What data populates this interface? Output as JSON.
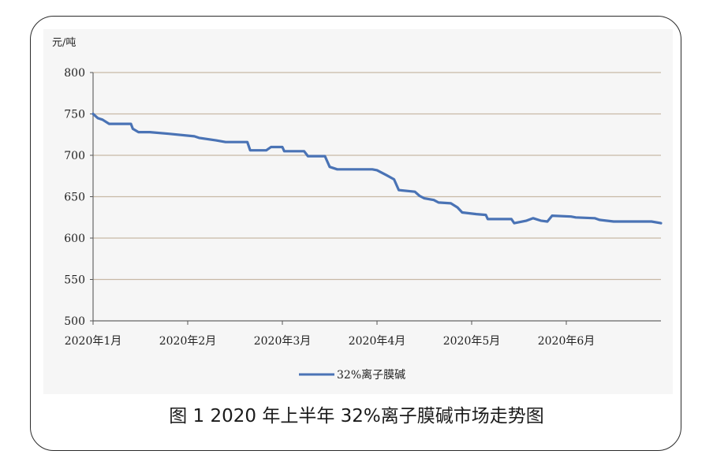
{
  "caption": "图 1  2020 年上半年 32%离子膜碱市场走势图",
  "chart_data": {
    "type": "line",
    "title": "",
    "ylabel": "元/吨",
    "xlabel": "",
    "ylim": [
      500,
      800
    ],
    "yticks": [
      500,
      550,
      600,
      650,
      700,
      750,
      800
    ],
    "xlim": [
      0,
      6
    ],
    "xticks": [
      {
        "x": 0,
        "label": "2020年1月"
      },
      {
        "x": 1,
        "label": "2020年2月"
      },
      {
        "x": 2,
        "label": "2020年3月"
      },
      {
        "x": 3,
        "label": "2020年4月"
      },
      {
        "x": 4,
        "label": "2020年5月"
      },
      {
        "x": 5,
        "label": "2020年6月"
      }
    ],
    "grid": true,
    "legend": "bottom-center",
    "series": [
      {
        "name": "32%离子膜碱",
        "color": "#4a73b5",
        "points": [
          [
            0.0,
            750
          ],
          [
            0.05,
            745
          ],
          [
            0.1,
            743
          ],
          [
            0.17,
            738
          ],
          [
            0.4,
            738
          ],
          [
            0.42,
            732
          ],
          [
            0.48,
            728
          ],
          [
            0.6,
            728
          ],
          [
            0.8,
            726
          ],
          [
            1.07,
            723
          ],
          [
            1.12,
            721
          ],
          [
            1.3,
            718
          ],
          [
            1.4,
            716
          ],
          [
            1.63,
            716
          ],
          [
            1.66,
            706
          ],
          [
            1.83,
            706
          ],
          [
            1.88,
            710
          ],
          [
            2.0,
            710
          ],
          [
            2.02,
            705
          ],
          [
            2.23,
            705
          ],
          [
            2.27,
            699
          ],
          [
            2.45,
            699
          ],
          [
            2.5,
            686
          ],
          [
            2.58,
            683
          ],
          [
            2.95,
            683
          ],
          [
            3.0,
            682
          ],
          [
            3.1,
            676
          ],
          [
            3.18,
            671
          ],
          [
            3.23,
            658
          ],
          [
            3.4,
            656
          ],
          [
            3.45,
            651
          ],
          [
            3.5,
            648
          ],
          [
            3.6,
            646
          ],
          [
            3.65,
            643
          ],
          [
            3.78,
            642
          ],
          [
            3.85,
            637
          ],
          [
            3.9,
            631
          ],
          [
            4.05,
            629
          ],
          [
            4.15,
            628
          ],
          [
            4.17,
            623
          ],
          [
            4.42,
            623
          ],
          [
            4.45,
            618
          ],
          [
            4.58,
            621
          ],
          [
            4.65,
            624
          ],
          [
            4.73,
            621
          ],
          [
            4.8,
            620
          ],
          [
            4.85,
            627
          ],
          [
            5.05,
            626
          ],
          [
            5.1,
            625
          ],
          [
            5.3,
            624
          ],
          [
            5.35,
            622
          ],
          [
            5.5,
            620
          ],
          [
            5.9,
            620
          ],
          [
            6.0,
            618
          ]
        ]
      }
    ]
  }
}
